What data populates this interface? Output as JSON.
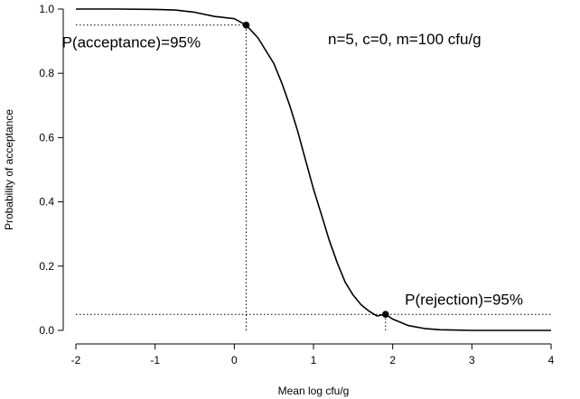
{
  "chart_data": {
    "type": "line",
    "title": "",
    "xlabel": "Mean log cfu/g",
    "ylabel": "Probability of acceptance",
    "xlim": [
      -2,
      4
    ],
    "ylim": [
      0,
      1
    ],
    "xticks": [
      -2,
      -1,
      0,
      1,
      2,
      3,
      4
    ],
    "xtick_labels": [
      "-2",
      "-1",
      "0",
      "1",
      "2",
      "3",
      "4"
    ],
    "yticks": [
      0,
      0.2,
      0.4,
      0.6,
      0.8,
      1
    ],
    "ytick_labels": [
      "0.0",
      "0.2",
      "0.4",
      "0.6",
      "0.8",
      "1.0"
    ],
    "grid": false,
    "legend": "none",
    "series": [
      {
        "x": [
          -2,
          -1.5,
          -1,
          -0.75,
          -0.5,
          -0.25,
          0,
          0.15,
          0.3,
          0.5,
          0.6,
          0.7,
          0.8,
          0.9,
          1,
          1.1,
          1.2,
          1.3,
          1.4,
          1.5,
          1.6,
          1.7,
          1.8,
          1.91,
          2.0,
          2.2,
          2.4,
          2.6,
          3,
          3.5,
          4
        ],
        "y": [
          1.0,
          1.0,
          0.999,
          0.997,
          0.99,
          0.977,
          0.97,
          0.95,
          0.91,
          0.83,
          0.77,
          0.7,
          0.62,
          0.53,
          0.44,
          0.36,
          0.28,
          0.21,
          0.15,
          0.11,
          0.08,
          0.06,
          0.045,
          0.05,
          0.035,
          0.015,
          0.006,
          0.002,
          0.0,
          0.0,
          0.0
        ]
      }
    ],
    "points": [
      {
        "x": 0.15,
        "y": 0.95
      },
      {
        "x": 1.91,
        "y": 0.05
      }
    ],
    "reference_lines": [
      {
        "type": "horizontal",
        "y": 0.95,
        "x_from": -2,
        "x_to": 0.15
      },
      {
        "type": "vertical",
        "x": 0.15,
        "y_from": 0,
        "y_to": 0.95
      },
      {
        "type": "horizontal",
        "y": 0.05,
        "x_from": -2,
        "x_to": 4
      },
      {
        "type": "vertical",
        "x": 1.91,
        "y_from": 0,
        "y_to": 0.05
      }
    ],
    "annotations": [
      {
        "text": "P(acceptance)=95%",
        "x": -1.3,
        "y": 0.88
      },
      {
        "text": "n=5, c=0, m=100 cfu/g",
        "x": 2.15,
        "y": 0.89
      },
      {
        "text": "P(rejection)=95%",
        "x": 2.9,
        "y": 0.08
      }
    ],
    "colors": {
      "line": "#000000",
      "axes": "#000000",
      "background": "#ffffff"
    }
  }
}
